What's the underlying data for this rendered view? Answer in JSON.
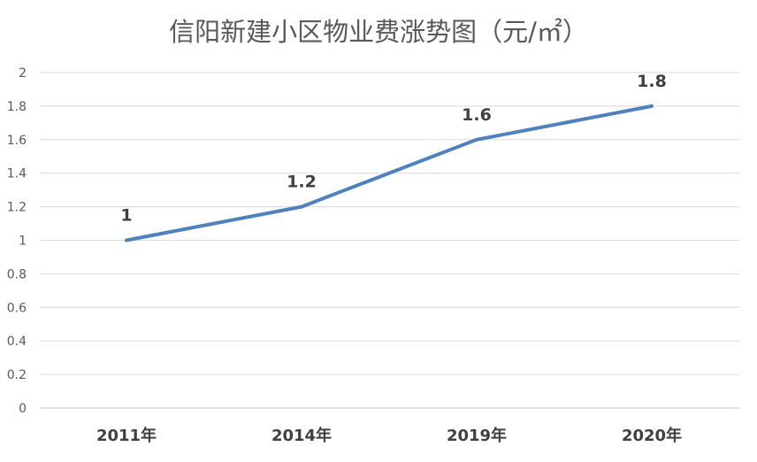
{
  "chart_data": {
    "type": "line",
    "title": "信阳新建小区物业费涨势图（元/㎡）",
    "categories": [
      "2011年",
      "2014年",
      "2019年",
      "2020年"
    ],
    "series": [
      {
        "values": [
          1,
          1.2,
          1.6,
          1.8
        ]
      }
    ],
    "data_labels": [
      "1",
      "1.2",
      "1.6",
      "1.8"
    ],
    "y_ticks": [
      "0",
      "0.2",
      "0.4",
      "0.6",
      "0.8",
      "1",
      "1.2",
      "1.4",
      "1.6",
      "1.8",
      "2"
    ],
    "ylim": [
      0,
      2
    ],
    "grid": true,
    "legend": "none",
    "colors": {
      "line": "#4F81BD",
      "grid": "#D9D9D9",
      "axis": "#BFBFBF",
      "title": "#595959",
      "tick_text": "#595959",
      "label_text": "#404040"
    }
  }
}
